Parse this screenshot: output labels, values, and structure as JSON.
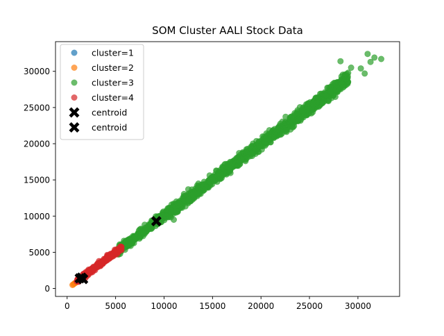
{
  "chart_data": {
    "type": "scatter",
    "title": "SOM Cluster AALI Stock Data",
    "xlabel": "",
    "ylabel": "",
    "xlim": [
      -1200,
      34300
    ],
    "ylim": [
      -1100,
      34100
    ],
    "xticks": [
      0,
      5000,
      10000,
      15000,
      20000,
      25000,
      30000
    ],
    "yticks": [
      0,
      5000,
      10000,
      15000,
      20000,
      25000,
      30000
    ],
    "grid": false,
    "legend_position": "top-left",
    "series": [
      {
        "name": "cluster=1",
        "color": "#1f77b4",
        "marker": "circle",
        "alpha": 0.7,
        "points": []
      },
      {
        "name": "cluster=2",
        "color": "#ff7f0e",
        "marker": "circle",
        "alpha": 0.7,
        "points": [
          [
            550,
            480
          ],
          [
            650,
            560
          ],
          [
            750,
            700
          ],
          [
            850,
            760
          ],
          [
            950,
            880
          ]
        ]
      },
      {
        "name": "cluster=3",
        "color": "#2ca02c",
        "marker": "circle",
        "alpha": 0.7,
        "trend": {
          "x_from": 5200,
          "x_to": 29000,
          "spread": 700
        },
        "points": [
          [
            29300,
            30500
          ],
          [
            30300,
            30400
          ],
          [
            31000,
            32400
          ],
          [
            31300,
            31300
          ],
          [
            31700,
            31900
          ],
          [
            32400,
            31700
          ],
          [
            28200,
            31400
          ],
          [
            29000,
            29800
          ],
          [
            30700,
            29700
          ],
          [
            8000,
            8800
          ],
          [
            11000,
            9500
          ],
          [
            12500,
            13700
          ]
        ]
      },
      {
        "name": "cluster=4",
        "color": "#d62728",
        "marker": "circle",
        "alpha": 0.7,
        "trend": {
          "x_from": 1000,
          "x_to": 5600,
          "spread": 300
        },
        "points": [
          [
            5300,
            5400
          ],
          [
            5600,
            5300
          ],
          [
            4900,
            5100
          ]
        ]
      }
    ],
    "centroids": [
      {
        "name": "centroid",
        "color": "#000000",
        "marker": "X",
        "points": [
          [
            1300,
            1400
          ],
          [
            1650,
            1300
          ]
        ]
      },
      {
        "name": "centroid",
        "color": "#000000",
        "marker": "X",
        "points": [
          [
            9200,
            9300
          ],
          [
            1500,
            1500
          ]
        ]
      }
    ]
  }
}
